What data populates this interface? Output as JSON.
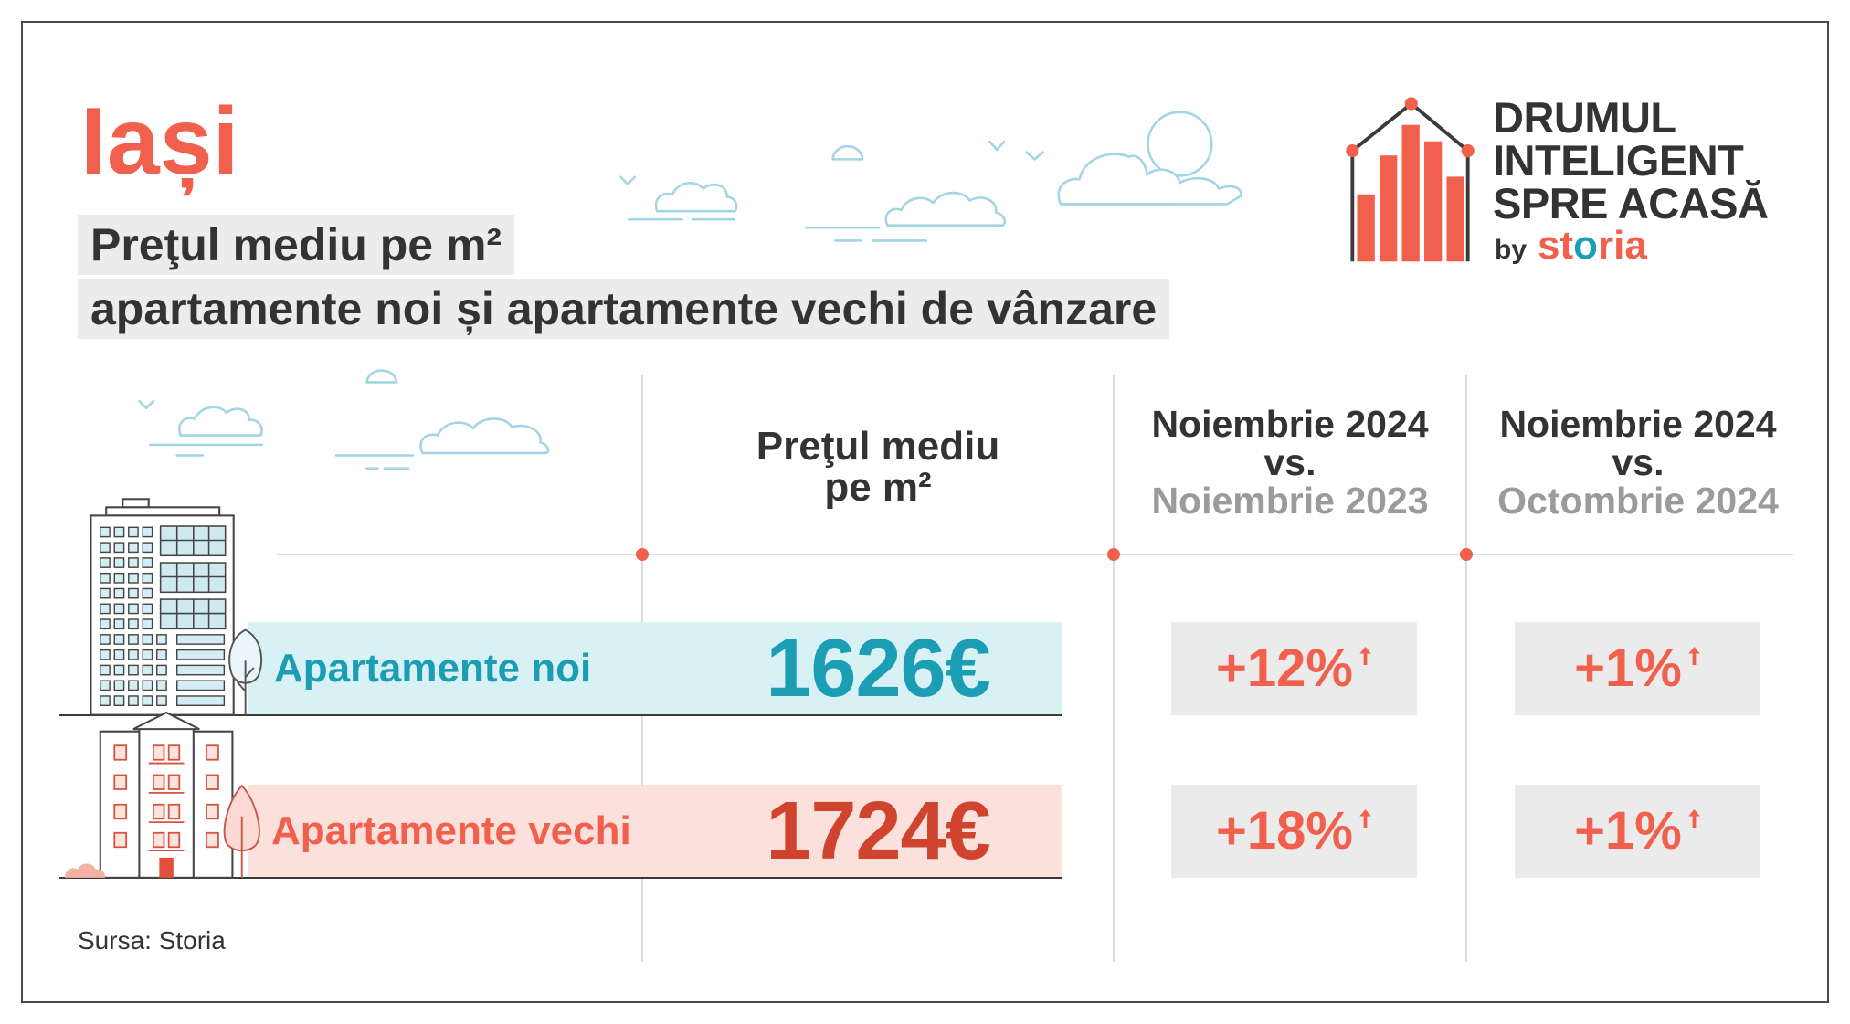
{
  "colors": {
    "accent": "#f0604d",
    "teal": "#1b9db4",
    "dark_red": "#cf432f",
    "text_dark": "#333333",
    "text_muted": "#9b9b9b",
    "band_new": "#d8f1f4",
    "band_old": "#fce0dc",
    "badge_bg": "#ebebeb"
  },
  "chart_data": {
    "type": "table",
    "title": "Iași",
    "subtitle": [
      "Preţul mediu pe m²",
      "apartamente noi și apartamente vechi de vânzare"
    ],
    "columns": [
      {
        "lines": [
          "Preţul mediu",
          "pe m²"
        ]
      },
      {
        "lines": [
          "Noiembrie 2024",
          "vs.",
          "Noiembrie 2023"
        ]
      },
      {
        "lines": [
          "Noiembrie 2024",
          "vs.",
          "Octombrie 2024"
        ]
      }
    ],
    "rows": [
      {
        "label": "Apartamente noi",
        "price": "1626€",
        "price_value": 1626,
        "yoy": "+12%",
        "yoy_pct": 12,
        "mom": "+1%",
        "mom_pct": 1,
        "trend_icon": "arrow-up-icon"
      },
      {
        "label": "Apartamente vechi",
        "price": "1724€",
        "price_value": 1724,
        "yoy": "+18%",
        "yoy_pct": 18,
        "mom": "+1%",
        "mom_pct": 1,
        "trend_icon": "arrow-up-icon"
      }
    ]
  },
  "logo": {
    "lines": [
      "DRUMUL",
      "INTELIGENT",
      "SPRE ACASĂ"
    ],
    "by": "by",
    "brand": "storia",
    "icon": "house-bar-chart-icon"
  },
  "source": "Sursa: Storia"
}
